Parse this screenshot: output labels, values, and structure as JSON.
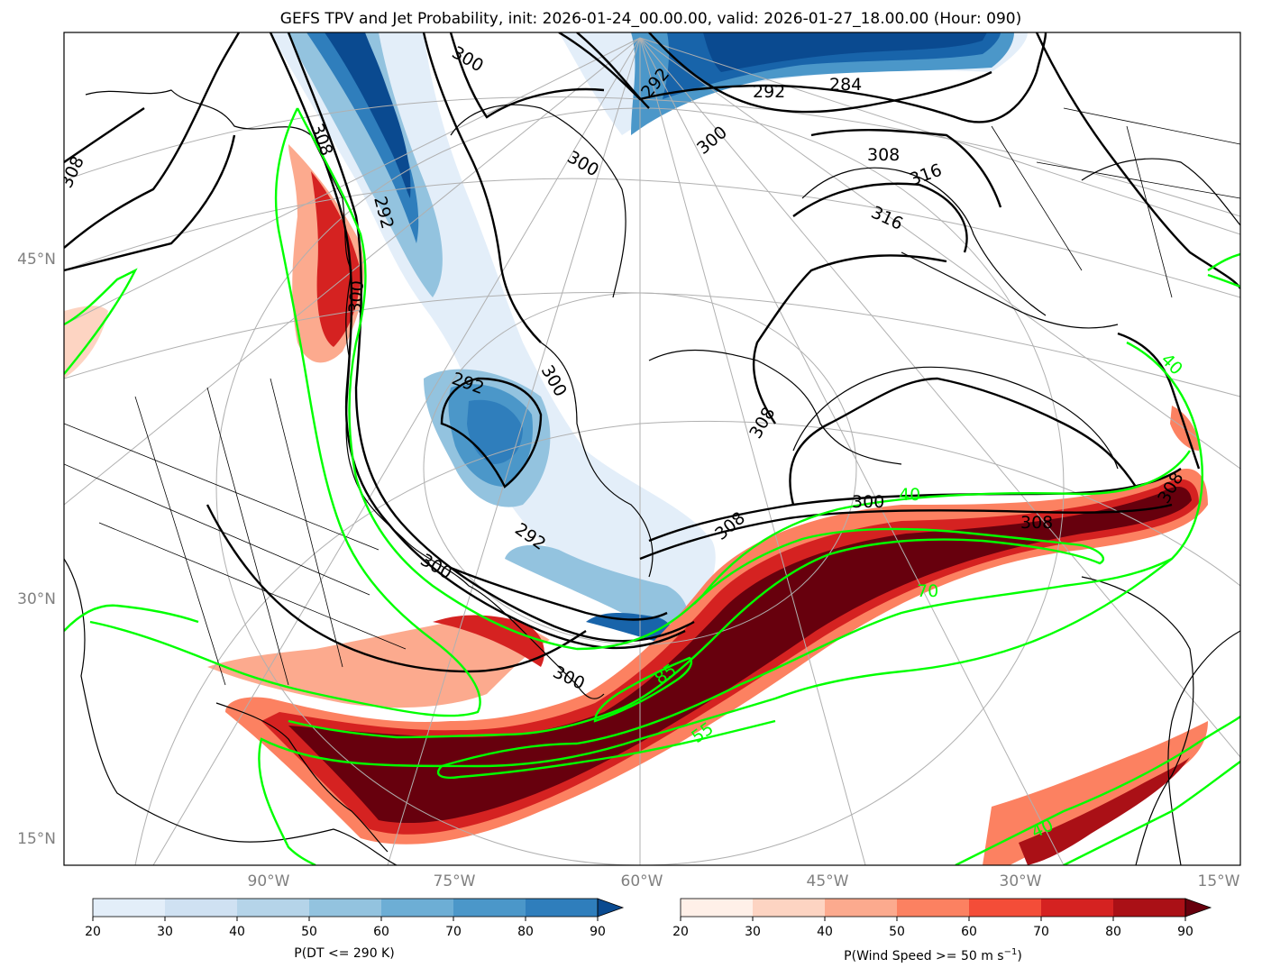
{
  "title": "GEFS TPV and Jet Probability, init: 2026-01-24_00.00.00, valid: 2026-01-27_18.00.00 (Hour: 090)",
  "lat_ticks": [
    "45°N",
    "30°N",
    "15°N"
  ],
  "lon_ticks": [
    "90°W",
    "75°W",
    "60°W",
    "45°W",
    "30°W",
    "15°W"
  ],
  "tpv_contour_labels": [
    "300",
    "308",
    "292",
    "300",
    "308",
    "292",
    "300",
    "292",
    "300",
    "308",
    "300",
    "292",
    "292",
    "284",
    "300",
    "308",
    "316",
    "316",
    "308",
    "300",
    "300",
    "308",
    "308"
  ],
  "jet_contour_labels": [
    "40",
    "70",
    "85",
    "55",
    "40",
    "40"
  ],
  "colorbar_left": {
    "label": "P(DT <= 290 K)",
    "ticks": [
      "20",
      "30",
      "40",
      "50",
      "60",
      "70",
      "80",
      "90"
    ],
    "colors": [
      "#e3eef9",
      "#cfe1f2",
      "#b5d4e9",
      "#93c3df",
      "#6daed5",
      "#4b97c9",
      "#2f7ebc",
      "#1864aa",
      "#0a4a90"
    ]
  },
  "colorbar_right": {
    "label_main": "P(Wind Speed >= 50 m s",
    "label_sup": "−1",
    "label_end": ")",
    "ticks": [
      "20",
      "30",
      "40",
      "50",
      "60",
      "70",
      "80",
      "90"
    ],
    "colors": [
      "#fff0e8",
      "#fdd4c2",
      "#fcaa8e",
      "#fc8161",
      "#f44d38",
      "#d52221",
      "#aa1016",
      "#800610",
      "#67000d"
    ]
  }
}
